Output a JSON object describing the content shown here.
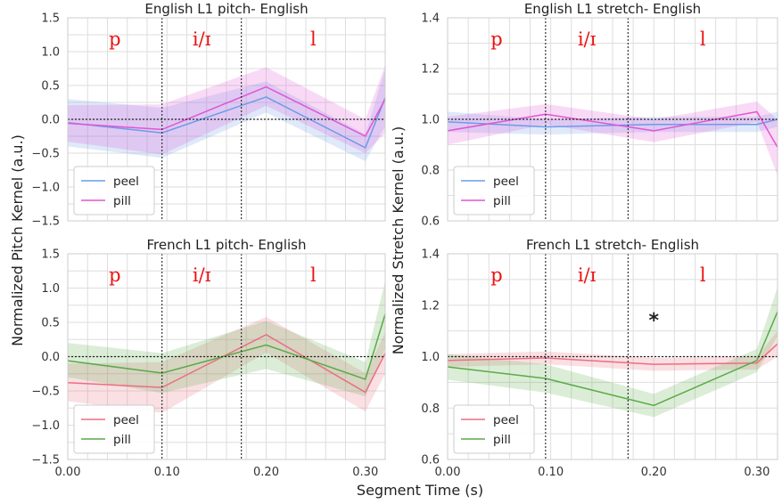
{
  "figure": {
    "xlabel": "Segment Time (s)",
    "ylabel_left": "Normalized Pitch Kernel (a.u.)",
    "ylabel_right": "Normalized Stretch Kernel (a.u.)"
  },
  "chart_data": [
    {
      "type": "line",
      "title": "English L1 pitch- English",
      "x": [
        0.0,
        0.095,
        0.2,
        0.3,
        0.32
      ],
      "xlim": [
        0.0,
        0.32
      ],
      "xticks": [
        "0.00",
        "0.10",
        "0.20",
        "0.30"
      ],
      "ylim": [
        -1.5,
        1.5
      ],
      "yticks": [
        "−1.5",
        "−1.0",
        "−0.5",
        "0.0",
        "0.5",
        "1.0",
        "1.5"
      ],
      "reference_line_y": 0.0,
      "segment_boundaries": [
        0.095,
        0.175
      ],
      "segment_labels": [
        "p",
        "i/ɪ",
        "l"
      ],
      "series": [
        {
          "name": "peel",
          "color": "#6c9be8",
          "values": [
            -0.05,
            -0.2,
            0.33,
            -0.42,
            0.32
          ],
          "lower": [
            -0.4,
            -0.57,
            0.1,
            -0.62,
            -0.1
          ],
          "upper": [
            0.3,
            0.17,
            0.56,
            -0.22,
            0.74
          ]
        },
        {
          "name": "pill",
          "color": "#e055d5",
          "values": [
            -0.06,
            -0.15,
            0.48,
            -0.25,
            0.3
          ],
          "lower": [
            -0.33,
            -0.52,
            0.2,
            -0.5,
            -0.2
          ],
          "upper": [
            0.21,
            0.22,
            0.77,
            0.0,
            0.8
          ]
        }
      ],
      "legend": "lower-left",
      "grid": true
    },
    {
      "type": "line",
      "title": "English L1 stretch- English",
      "x": [
        0.0,
        0.095,
        0.2,
        0.3,
        0.32
      ],
      "xlim": [
        0.0,
        0.32
      ],
      "xticks": [
        "0.00",
        "0.10",
        "0.20",
        "0.30"
      ],
      "ylim": [
        0.6,
        1.4
      ],
      "yticks": [
        "0.6",
        "0.8",
        "1.0",
        "1.2",
        "1.4"
      ],
      "reference_line_y": 1.0,
      "segment_boundaries": [
        0.095,
        0.175
      ],
      "segment_labels": [
        "p",
        "i/ɪ",
        "l"
      ],
      "series": [
        {
          "name": "peel",
          "color": "#6c9be8",
          "values": [
            0.99,
            0.97,
            0.98,
            0.98,
            1.0
          ],
          "lower": [
            0.95,
            0.94,
            0.95,
            0.95,
            0.97
          ],
          "upper": [
            1.03,
            1.0,
            1.01,
            1.01,
            1.03
          ]
        },
        {
          "name": "pill",
          "color": "#e055d5",
          "values": [
            0.955,
            1.02,
            0.955,
            1.03,
            0.89
          ],
          "lower": [
            0.9,
            0.98,
            0.91,
            0.99,
            0.78
          ],
          "upper": [
            1.01,
            1.06,
            1.0,
            1.07,
            1.0
          ]
        }
      ],
      "legend": "lower-left",
      "grid": true
    },
    {
      "type": "line",
      "title": "French L1 pitch- English",
      "x": [
        0.0,
        0.095,
        0.2,
        0.3,
        0.32
      ],
      "xlim": [
        0.0,
        0.32
      ],
      "xticks": [
        "0.00",
        "0.10",
        "0.20",
        "0.30"
      ],
      "ylim": [
        -1.5,
        1.5
      ],
      "yticks": [
        "−1.5",
        "−1.0",
        "−0.5",
        "0.0",
        "0.5",
        "1.0",
        "1.5"
      ],
      "reference_line_y": 0.0,
      "segment_boundaries": [
        0.095,
        0.175
      ],
      "segment_labels": [
        "p",
        "i/ɪ",
        "l"
      ],
      "series": [
        {
          "name": "peel",
          "color": "#ea6f80",
          "values": [
            -0.38,
            -0.45,
            0.32,
            -0.52,
            0.05
          ],
          "lower": [
            -0.65,
            -0.82,
            0.06,
            -0.8,
            -0.25
          ],
          "upper": [
            -0.1,
            -0.08,
            0.58,
            -0.24,
            0.35
          ]
        },
        {
          "name": "pill",
          "color": "#5aab47",
          "values": [
            -0.06,
            -0.24,
            0.17,
            -0.33,
            0.62
          ],
          "lower": [
            -0.3,
            -0.53,
            -0.18,
            -0.58,
            0.12
          ],
          "upper": [
            0.2,
            0.05,
            0.52,
            -0.08,
            1.1
          ]
        }
      ],
      "legend": "lower-left",
      "grid": true
    },
    {
      "type": "line",
      "title": "French L1 stretch- English",
      "x": [
        0.0,
        0.095,
        0.2,
        0.3,
        0.32
      ],
      "xlim": [
        0.0,
        0.32
      ],
      "xticks": [
        "0.00",
        "0.10",
        "0.20",
        "0.30"
      ],
      "ylim": [
        0.6,
        1.4
      ],
      "yticks": [
        "0.6",
        "0.8",
        "1.0",
        "1.2",
        "1.4"
      ],
      "reference_line_y": 1.0,
      "segment_boundaries": [
        0.095,
        0.175
      ],
      "segment_labels": [
        "p",
        "i/ɪ",
        "l"
      ],
      "annotation": {
        "text": "*",
        "x": 0.2,
        "y": 1.15
      },
      "series": [
        {
          "name": "peel",
          "color": "#ea6f80",
          "values": [
            0.985,
            0.995,
            0.97,
            0.975,
            1.05
          ],
          "lower": [
            0.96,
            0.97,
            0.945,
            0.95,
            1.0
          ],
          "upper": [
            1.01,
            1.02,
            0.995,
            1.0,
            1.1
          ]
        },
        {
          "name": "pill",
          "color": "#5aab47",
          "values": [
            0.96,
            0.915,
            0.81,
            0.985,
            1.175
          ],
          "lower": [
            0.91,
            0.86,
            0.765,
            0.94,
            1.08
          ],
          "upper": [
            1.01,
            0.97,
            0.855,
            1.03,
            1.27
          ]
        }
      ],
      "legend": "lower-left",
      "grid": true
    }
  ]
}
